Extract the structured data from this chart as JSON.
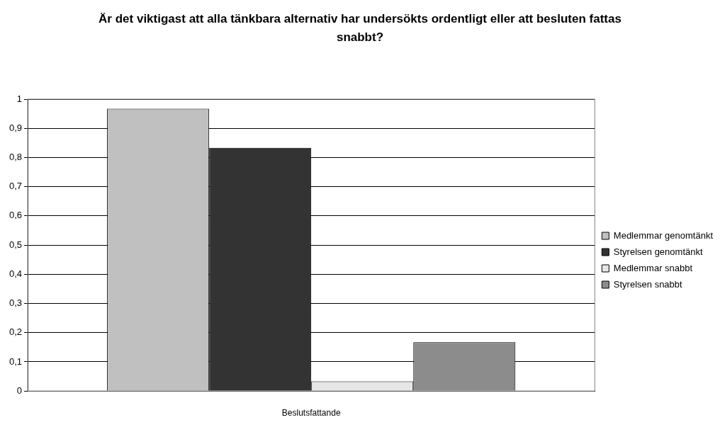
{
  "chart_data": {
    "type": "bar",
    "title": "Är det viktigast att alla tänkbara alternativ har undersökts ordentligt eller att besluten fattas snabbt?",
    "xlabel": "Beslutsfattande",
    "categories": [
      null
    ],
    "series": [
      {
        "name": "Medlemmar genomtänkt",
        "color": "#c0c0c0",
        "values": [
          0.967
        ]
      },
      {
        "name": "Styrelsen genomtänkt",
        "color": "#333333",
        "values": [
          0.833
        ]
      },
      {
        "name": "Medlemmar snabbt",
        "color": "#e6e6e6",
        "values": [
          0.033
        ]
      },
      {
        "name": "Styrelsen snabbt",
        "color": "#8c8c8c",
        "values": [
          0.167
        ]
      }
    ],
    "ylim": [
      0,
      1
    ],
    "yticks": [
      0,
      {
        "value": 0.1,
        "label": "0,1"
      },
      {
        "value": 0.2,
        "label": "0,2"
      },
      {
        "value": 0.3,
        "label": "0,3"
      },
      {
        "value": 0.4,
        "label": "0,4"
      },
      {
        "value": 0.5,
        "label": "0,5"
      },
      {
        "value": 0.6,
        "label": "0,6"
      },
      {
        "value": 0.7,
        "label": "0,7"
      },
      {
        "value": 0.8,
        "label": "0,8"
      },
      {
        "value": 0.9,
        "label": "0,9"
      },
      1
    ],
    "grid": "y",
    "legend": "right"
  }
}
